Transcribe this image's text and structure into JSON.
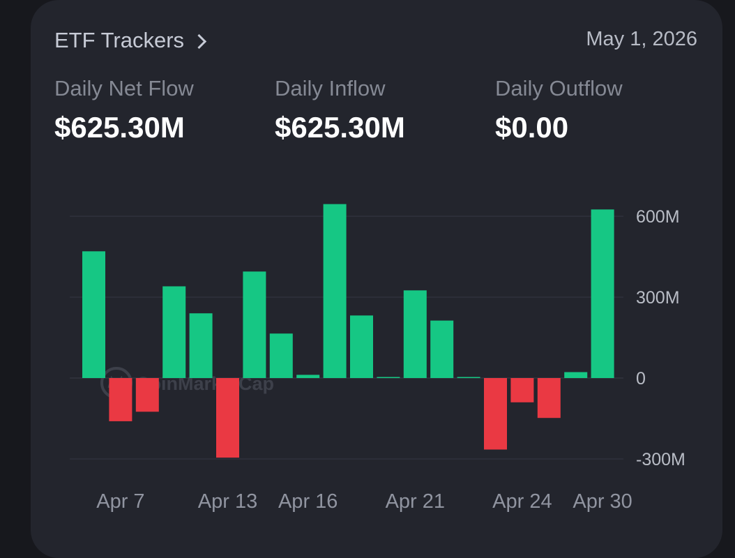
{
  "header": {
    "title": "ETF Trackers",
    "date": "May 1, 2026"
  },
  "stats": [
    {
      "label": "Daily Net Flow",
      "value": "$625.30M"
    },
    {
      "label": "Daily Inflow",
      "value": "$625.30M"
    },
    {
      "label": "Daily Outflow",
      "value": "$0.00"
    }
  ],
  "watermark": "CoinMarketCap",
  "colors": {
    "positive": "#16c784",
    "negative": "#ea3943",
    "card_bg": "#23252d",
    "page_bg": "#17181d"
  },
  "chart_data": {
    "type": "bar",
    "ylim": [
      -300,
      600
    ],
    "y_unit": "M",
    "y_ticks": [
      {
        "value": 600,
        "label": "600M"
      },
      {
        "value": 300,
        "label": "300M"
      },
      {
        "value": 0,
        "label": "0"
      },
      {
        "value": -300,
        "label": "-300M"
      }
    ],
    "x_tick_labels": [
      {
        "index": 1,
        "label": "Apr 7"
      },
      {
        "index": 5,
        "label": "Apr 13"
      },
      {
        "index": 8,
        "label": "Apr 16"
      },
      {
        "index": 12,
        "label": "Apr 21"
      },
      {
        "index": 16,
        "label": "Apr 24"
      },
      {
        "index": 19,
        "label": "Apr 30"
      }
    ],
    "values": [
      470,
      -160,
      -125,
      340,
      240,
      -295,
      395,
      165,
      12,
      645,
      232,
      1,
      325,
      213,
      3,
      -265,
      -90,
      -148,
      22,
      625
    ],
    "grid": true,
    "legend": "none"
  }
}
